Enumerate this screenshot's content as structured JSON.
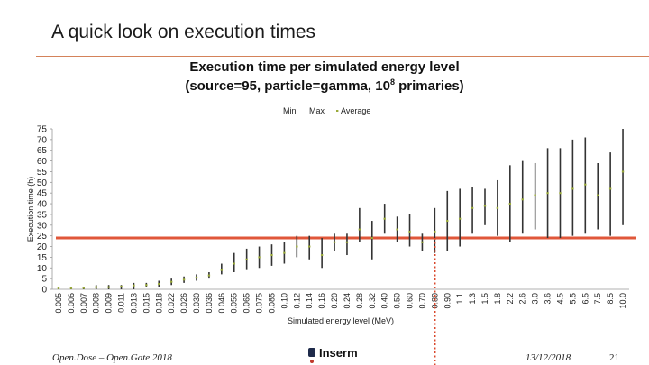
{
  "slide": {
    "title": "A quick look on execution times",
    "footer_left": "Open.Dose – Open.Gate 2018",
    "footer_date": "13/12/2018",
    "footer_page": "21",
    "logo_text": "Inserm"
  },
  "colors": {
    "accent_rule": "#d4825a",
    "reference_line": "#e0573a",
    "marker_line": "#d9472b",
    "range_bar": "#333333",
    "average_point": "#9aaa3a"
  },
  "chart_data": {
    "type": "stock",
    "title_line1": "Execution time per simulated energy level",
    "title_line2_pre": "(source=95, particle=gamma, 10",
    "title_line2_sup": "8",
    "title_line2_post": " primaries)",
    "xlabel": "Simulated energy level (MeV)",
    "ylabel": "Execution time (h)",
    "ylim": [
      0,
      75
    ],
    "yticks": [
      0,
      5,
      10,
      15,
      20,
      25,
      30,
      35,
      40,
      45,
      50,
      55,
      60,
      65,
      70,
      75
    ],
    "legend": [
      "Min",
      "Max",
      "Average"
    ],
    "legend_position": "top-right",
    "reference_line_value": 24,
    "marker_category": "0.80",
    "categories": [
      "0.005",
      "0.006",
      "0.007",
      "0.008",
      "0.009",
      "0.011",
      "0.013",
      "0.015",
      "0.018",
      "0.022",
      "0.026",
      "0.030",
      "0.036",
      "0.046",
      "0.055",
      "0.065",
      "0.075",
      "0.085",
      "0.10",
      "0.12",
      "0.14",
      "0.16",
      "0.20",
      "0.24",
      "0.28",
      "0.32",
      "0.40",
      "0.50",
      "0.60",
      "0.70",
      "0.80",
      "0.90",
      "1.1",
      "1.3",
      "1.5",
      "1.8",
      "2.2",
      "2.6",
      "3.0",
      "3.6",
      "4.5",
      "5.5",
      "6.5",
      "7.5",
      "8.5",
      "10.0"
    ],
    "min": [
      0,
      0,
      0,
      0,
      0,
      0,
      0,
      1,
      1,
      2,
      3,
      4,
      5,
      7,
      8,
      9,
      10,
      11,
      12,
      15,
      14,
      10,
      18,
      16,
      22,
      14,
      26,
      22,
      20,
      18,
      17,
      18,
      20,
      26,
      30,
      25,
      22,
      26,
      28,
      24,
      24,
      25,
      26,
      28,
      25,
      30
    ],
    "max": [
      1,
      1,
      1,
      2,
      2,
      2,
      3,
      3,
      4,
      5,
      6,
      7,
      8,
      12,
      17,
      19,
      20,
      21,
      22,
      25,
      25,
      24,
      26,
      26,
      38,
      32,
      40,
      34,
      35,
      26,
      38,
      46,
      47,
      48,
      47,
      51,
      58,
      60,
      59,
      66,
      66,
      70,
      71,
      59,
      64,
      75
    ],
    "average": [
      0.5,
      0.5,
      0.6,
      1,
      1,
      1.3,
      1.8,
      2,
      2.5,
      3.5,
      4.5,
      5.5,
      6.5,
      9,
      12,
      14,
      15,
      16,
      17,
      20,
      20,
      16,
      22,
      22,
      28,
      24,
      33,
      28,
      27,
      22,
      27,
      32,
      33,
      38,
      39,
      38,
      40,
      42,
      44,
      45,
      45,
      47,
      49,
      44,
      47,
      55
    ]
  }
}
